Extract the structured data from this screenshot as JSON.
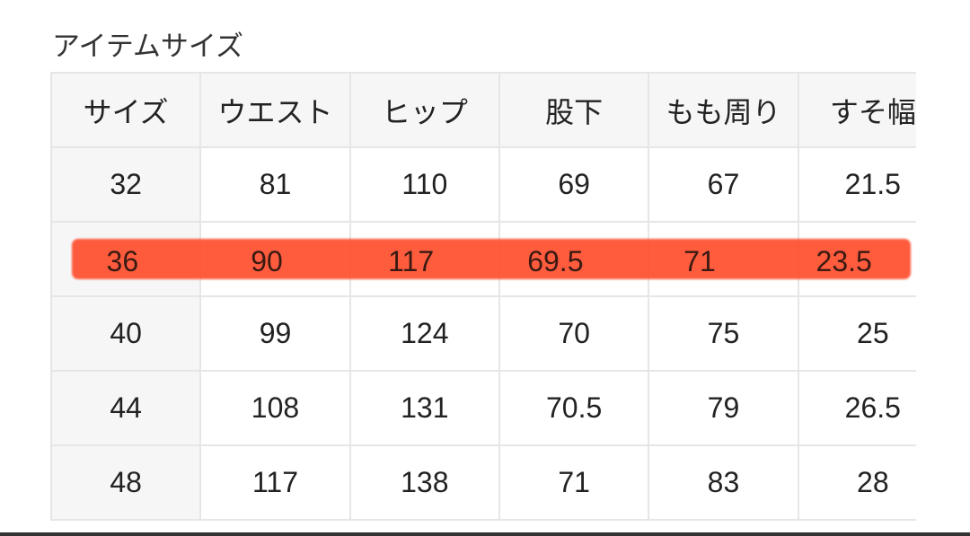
{
  "title": "アイテムサイズ",
  "table": {
    "headers": [
      "サイズ",
      "ウエスト",
      "ヒップ",
      "股下",
      "もも周り",
      "すそ幅"
    ],
    "rows": [
      [
        "32",
        "81",
        "110",
        "69",
        "67",
        "21.5"
      ],
      [
        "36",
        "90",
        "117",
        "69.5",
        "71",
        "23.5"
      ],
      [
        "40",
        "99",
        "124",
        "70",
        "75",
        "25"
      ],
      [
        "44",
        "108",
        "131",
        "70.5",
        "79",
        "26.5"
      ],
      [
        "48",
        "117",
        "138",
        "71",
        "83",
        "28"
      ]
    ],
    "highlighted_row": "36"
  },
  "colors": {
    "highlight": "#ff5030"
  }
}
